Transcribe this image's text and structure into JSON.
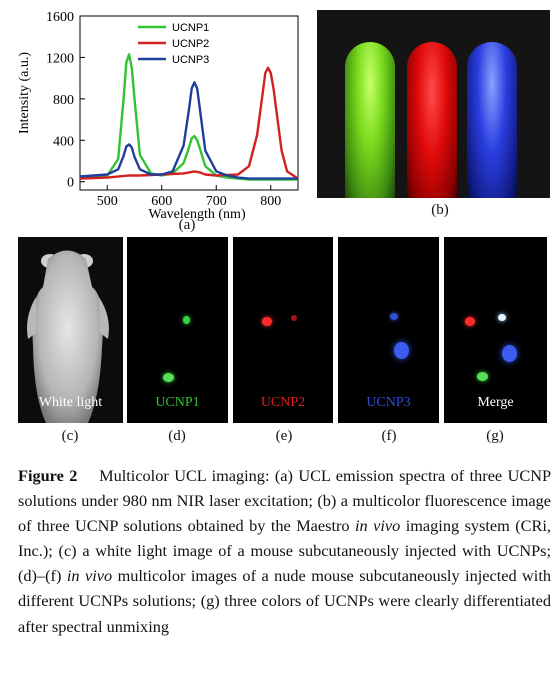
{
  "chart_data": {
    "type": "line",
    "ylabel": "Intensity (a.u.)",
    "xlabel": "Wavelength (nm)",
    "xlim": [
      450,
      850
    ],
    "ylim": [
      -80,
      1600
    ],
    "xticks": [
      500,
      600,
      700,
      800
    ],
    "yticks": [
      0,
      400,
      800,
      1200,
      1600
    ],
    "legend_position": "top-center",
    "series": [
      {
        "name": "UCNP1",
        "color": "#33c233",
        "x": [
          450,
          500,
          520,
          530,
          535,
          540,
          545,
          550,
          560,
          580,
          600,
          620,
          640,
          650,
          655,
          660,
          665,
          670,
          680,
          700,
          720,
          740,
          760,
          780,
          800,
          820,
          850
        ],
        "y": [
          40,
          60,
          220,
          800,
          1150,
          1230,
          1100,
          800,
          260,
          80,
          60,
          80,
          180,
          330,
          420,
          440,
          400,
          320,
          150,
          60,
          40,
          30,
          20,
          20,
          20,
          20,
          20
        ]
      },
      {
        "name": "UCNP2",
        "color": "#d42020",
        "x": [
          450,
          500,
          540,
          560,
          600,
          640,
          650,
          660,
          670,
          680,
          700,
          740,
          760,
          775,
          785,
          790,
          795,
          800,
          805,
          810,
          820,
          830,
          850
        ],
        "y": [
          30,
          40,
          60,
          60,
          70,
          80,
          90,
          100,
          90,
          70,
          60,
          70,
          150,
          450,
          850,
          1050,
          1100,
          1050,
          900,
          700,
          300,
          100,
          30
        ]
      },
      {
        "name": "UCNP3",
        "color": "#1f3f9c",
        "x": [
          450,
          500,
          520,
          530,
          535,
          540,
          545,
          550,
          560,
          580,
          600,
          620,
          640,
          650,
          655,
          660,
          665,
          670,
          680,
          700,
          720,
          740,
          760,
          780,
          800,
          850
        ],
        "y": [
          50,
          70,
          120,
          250,
          340,
          360,
          330,
          240,
          120,
          70,
          70,
          100,
          350,
          700,
          900,
          960,
          900,
          700,
          300,
          100,
          60,
          40,
          30,
          30,
          30,
          30
        ]
      }
    ]
  },
  "labels": {
    "a": "(a)",
    "b": "(b)",
    "c": "(c)",
    "d": "(d)",
    "e": "(e)",
    "f": "(f)",
    "g": "(g)"
  },
  "panels": {
    "white_light": "White light",
    "ucnp1": "UCNP1",
    "ucnp2": "UCNP2",
    "ucnp3": "UCNP3",
    "merge": "Merge"
  },
  "colors": {
    "green": "#33c233",
    "red": "#d42020",
    "blue": "#2f4fd0"
  },
  "caption": {
    "label": "Figure 2",
    "text": "Multicolor UCL imaging: (a) UCL emission spectra of three UCNP solutions under 980 nm NIR laser excitation; (b) a multicolor fluorescence image of three UCNP solutions obtained by the Maestro ",
    "italic1": "in vivo",
    "text2": " imaging system (CRi, Inc.); (c) a white light image of a mouse subcutaneously injected with UCNPs; (d)–(f) ",
    "italic2": "in vivo",
    "text3": " multicolor images of a nude mouse subcutaneously injected with different UCNPs solutions; (g) three colors of UCNPs were clearly differentiated after spectral unmixing"
  }
}
